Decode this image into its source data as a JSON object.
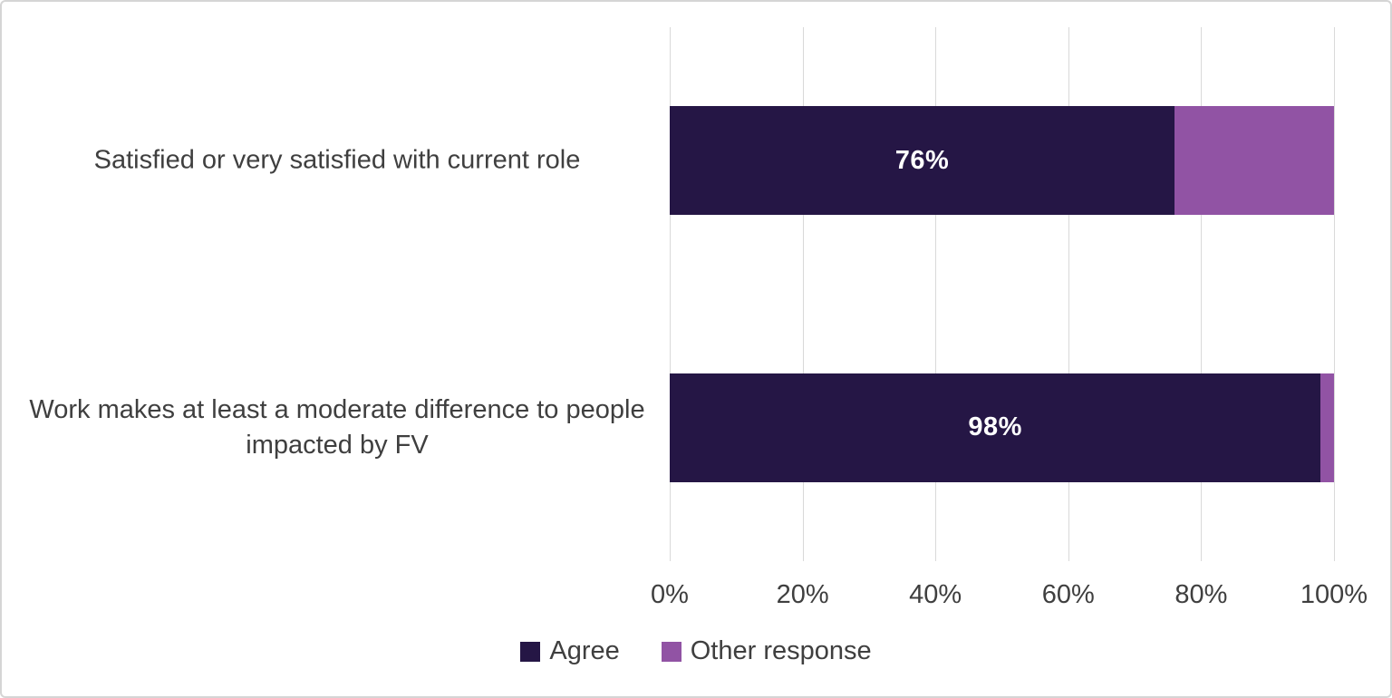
{
  "chart_data": {
    "type": "bar",
    "orientation": "horizontal",
    "stacked": true,
    "title": "",
    "xlabel": "",
    "ylabel": "",
    "grid": true,
    "categories": [
      "Satisfied or very satisfied with current role",
      "Work makes at least a moderate difference to people impacted by FV"
    ],
    "series": [
      {
        "name": "Agree",
        "color": "#251645",
        "values": [
          76,
          98
        ],
        "data_labels": [
          "76%",
          "98%"
        ]
      },
      {
        "name": "Other response",
        "color": "#9153a4",
        "values": [
          24,
          2
        ],
        "data_labels": [
          "",
          ""
        ]
      }
    ],
    "x_axis": {
      "min": 0,
      "max": 100,
      "tick_labels": [
        "0%",
        "20%",
        "40%",
        "60%",
        "80%",
        "100%"
      ],
      "tick_values": [
        0,
        20,
        40,
        60,
        80,
        100
      ]
    },
    "legend": {
      "position": "bottom",
      "items": [
        "Agree",
        "Other response"
      ]
    },
    "colors": {
      "gridline": "#d9d9d9",
      "axis_text": "#3f3f3f",
      "data_label_text": "#ffffff",
      "canvas_border": "#d5d5d5"
    }
  }
}
